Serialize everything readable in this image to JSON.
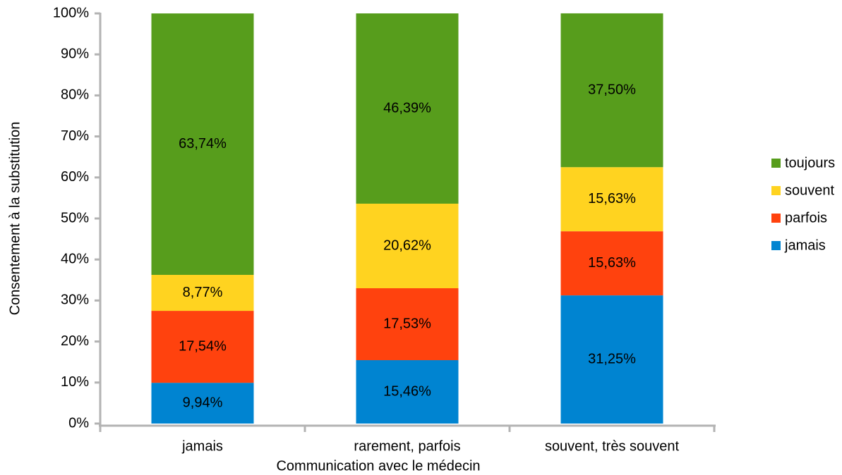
{
  "chart_data": {
    "type": "stacked_bar",
    "x_label": "Communication avec le médecin",
    "y_label": "Consentement à la substitution",
    "categories": [
      "jamais",
      "rarement, parfois",
      "souvent, très souvent"
    ],
    "series": [
      {
        "name": "jamais",
        "color": "#0084d1",
        "values": [
          9.94,
          15.46,
          31.25
        ],
        "value_labels": [
          "9,94%",
          "15,46%",
          "31,25%"
        ]
      },
      {
        "name": "parfois",
        "color": "#ff420e",
        "values": [
          17.54,
          17.53,
          15.63
        ],
        "value_labels": [
          "17,54%",
          "17,53%",
          "15,63%"
        ]
      },
      {
        "name": "souvent",
        "color": "#ffd320",
        "values": [
          8.77,
          20.62,
          15.63
        ],
        "value_labels": [
          "8,77%",
          "20,62%",
          "15,63%"
        ]
      },
      {
        "name": "toujours",
        "color": "#579d1c",
        "values": [
          63.74,
          46.39,
          37.5
        ],
        "value_labels": [
          "63,74%",
          "46,39%",
          "37,50%"
        ]
      }
    ],
    "ylim": [
      0,
      100
    ],
    "yticks": [
      {
        "value": 0,
        "label": "0%"
      },
      {
        "value": 10,
        "label": "10%"
      },
      {
        "value": 20,
        "label": "20%"
      },
      {
        "value": 30,
        "label": "30%"
      },
      {
        "value": 40,
        "label": "40%"
      },
      {
        "value": 50,
        "label": "50%"
      },
      {
        "value": 60,
        "label": "60%"
      },
      {
        "value": 70,
        "label": "70%"
      },
      {
        "value": 80,
        "label": "80%"
      },
      {
        "value": 90,
        "label": "90%"
      },
      {
        "value": 100,
        "label": "100%"
      }
    ],
    "grid": false,
    "legend": "right"
  }
}
